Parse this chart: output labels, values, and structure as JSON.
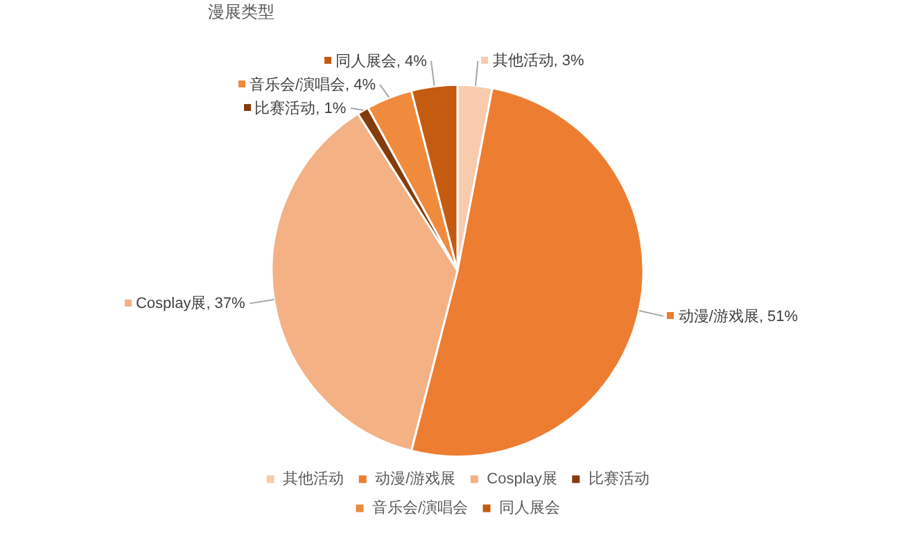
{
  "chart_data": {
    "type": "pie",
    "title": "漫展类型",
    "categories": [
      "其他活动",
      "动漫/游戏展",
      "Cosplay展",
      "比赛活动",
      "音乐会/演唱会",
      "同人展会"
    ],
    "values": [
      3,
      51,
      37,
      1,
      4,
      4
    ],
    "colors": [
      "#f8cbad",
      "#ed7d31",
      "#f4b183",
      "#843c0c",
      "#f08a3c",
      "#c55a11"
    ],
    "value_labels": [
      "其他活动, 3%",
      "动漫/游戏展, 51%",
      "Cosplay展, 37%",
      "比赛活动, 1%",
      "音乐会/演唱会, 4%",
      "同人展会, 4%"
    ],
    "legend": "bottom"
  }
}
